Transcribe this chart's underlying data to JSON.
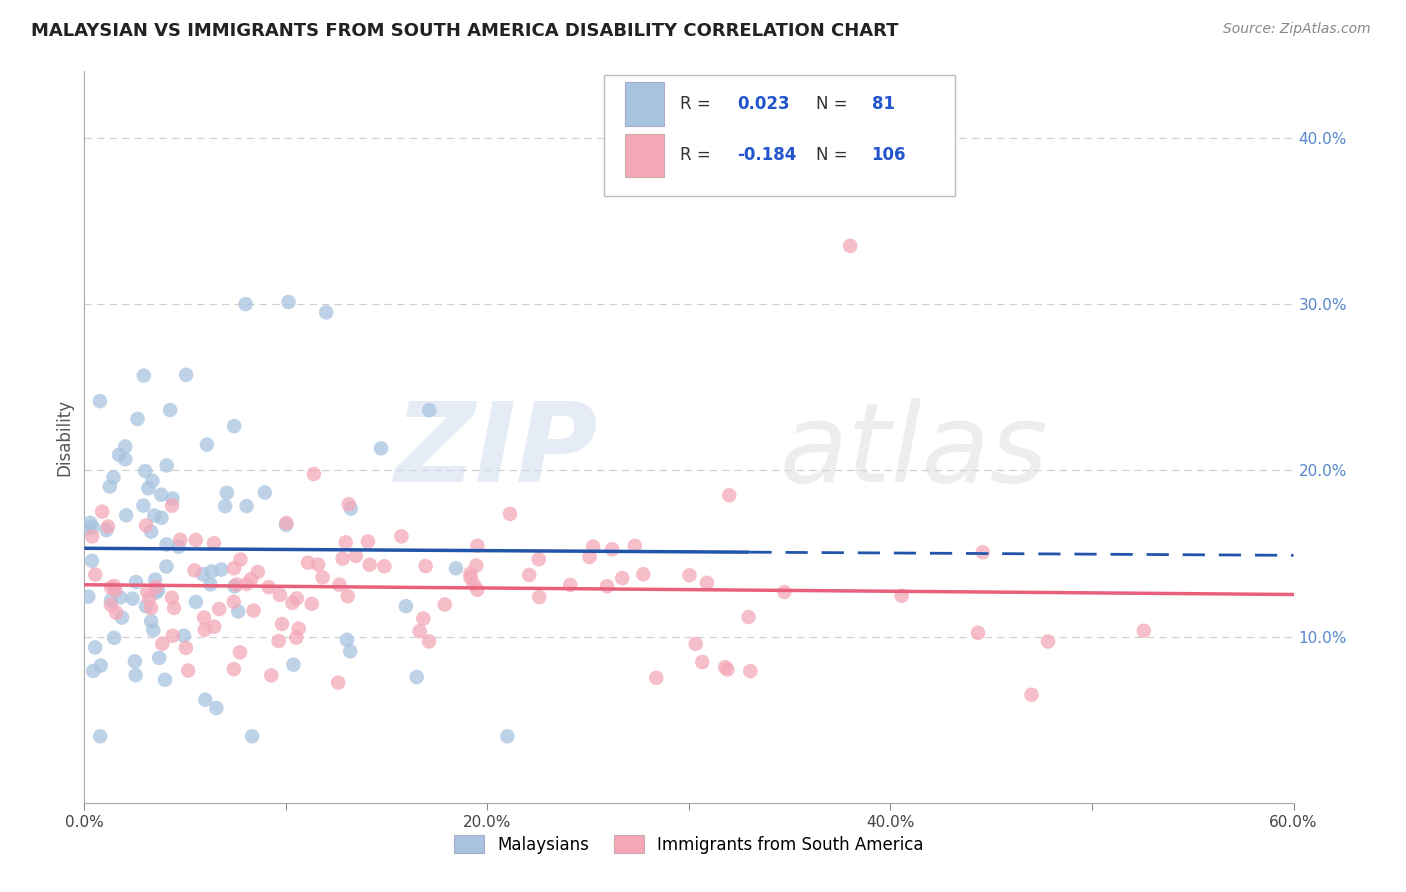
{
  "title": "MALAYSIAN VS IMMIGRANTS FROM SOUTH AMERICA DISABILITY CORRELATION CHART",
  "source": "Source: ZipAtlas.com",
  "ylabel": "Disability",
  "xlim": [
    0.0,
    0.6
  ],
  "ylim": [
    0.0,
    0.44
  ],
  "xticks": [
    0.0,
    0.1,
    0.2,
    0.3,
    0.4,
    0.5,
    0.6
  ],
  "xticklabels": [
    "0.0%",
    "",
    "20.0%",
    "",
    "40.0%",
    "",
    "60.0%"
  ],
  "yticks_right": [
    0.1,
    0.2,
    0.3,
    0.4
  ],
  "yticklabels_right": [
    "10.0%",
    "20.0%",
    "30.0%",
    "40.0%"
  ],
  "blue_color": "#A8C4E0",
  "pink_color": "#F4A8B8",
  "blue_line_color": "#2255AA",
  "pink_line_color": "#E8607A",
  "background_color": "#FFFFFF",
  "grid_color": "#CCCCCC",
  "legend_blue_val": "0.023",
  "legend_blue_n": "81",
  "legend_pink_val": "-0.184",
  "legend_pink_n": "106",
  "watermark_zip": "ZIP",
  "watermark_atlas": "atlas",
  "right_tick_color": "#5588CC",
  "legend_val_color": "#2255CC",
  "legend_text_color": "#333333"
}
